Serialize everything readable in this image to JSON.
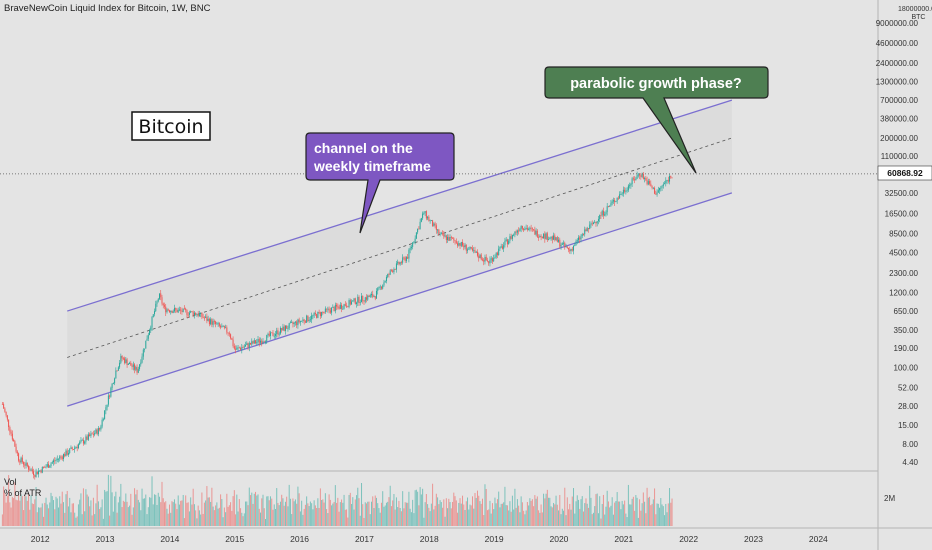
{
  "header": {
    "title": "BraveNewCoin Liquid Index for Bitcoin, 1W, BNC"
  },
  "axis": {
    "currency_label": "BTC",
    "scale_top": "18000000.00",
    "y_ticks": [
      "9000000.00",
      "4600000.00",
      "2400000.00",
      "1300000.00",
      "700000.00",
      "380000.00",
      "200000.00",
      "110000.00",
      "60868.92",
      "32500.00",
      "16500.00",
      "8500.00",
      "4500.00",
      "2300.00",
      "1200.00",
      "650.00",
      "350.00",
      "190.00",
      "100.00",
      "52.00",
      "28.00",
      "15.00",
      "8.00",
      "4.40"
    ],
    "x_ticks": [
      "2012",
      "2013",
      "2014",
      "2015",
      "2016",
      "2017",
      "2018",
      "2019",
      "2020",
      "2021",
      "2022",
      "2023",
      "2024"
    ],
    "last_price": "60868.92"
  },
  "volume_pane": {
    "title": "Vol",
    "subtitle": "% of ATR",
    "scale_label": "2M"
  },
  "annotations": {
    "asset_label": "Bitcoin",
    "channel_note": "channel on the weekly timeframe",
    "channel_note_line1": "channel on the",
    "channel_note_line2": "weekly timeframe",
    "parabolic_note": "parabolic growth phase?"
  },
  "colors": {
    "background": "#e4e4e4",
    "channel_line": "#7b6fd0",
    "channel_fill": "#d9d9d9",
    "up_candle": "#26a69a",
    "down_candle": "#ef5350",
    "channel_callout": "#7e57c2",
    "parabolic_callout": "#4e7f52",
    "price_line": "#333333"
  },
  "chart_data": {
    "type": "candlestick",
    "scale": "log",
    "series": [
      {
        "name": "BTC",
        "x": [
          "2011-06",
          "2011-09",
          "2011-12",
          "2012-06",
          "2012-12",
          "2013-03",
          "2013-04",
          "2013-07",
          "2013-11",
          "2013-12",
          "2014-06",
          "2014-12",
          "2015-01",
          "2015-06",
          "2015-12",
          "2016-06",
          "2016-12",
          "2017-03",
          "2017-06",
          "2017-09",
          "2017-12",
          "2018-03",
          "2018-06",
          "2018-12",
          "2019-06",
          "2019-09",
          "2019-12",
          "2020-03",
          "2020-06",
          "2020-12",
          "2021-04",
          "2021-07",
          "2021-10"
        ],
        "values": [
          30,
          5,
          3,
          6,
          13,
          90,
          140,
          90,
          1100,
          700,
          600,
          320,
          180,
          250,
          430,
          650,
          950,
          1100,
          2500,
          4000,
          17000,
          8000,
          6500,
          3300,
          11000,
          8500,
          7200,
          4800,
          9300,
          29000,
          63000,
          32000,
          61000
        ]
      }
    ],
    "channel": {
      "upper": [
        {
          "x": "2012-06",
          "y": 650
        },
        {
          "x": "2022-09",
          "y": 700000
        }
      ],
      "middle": [
        {
          "x": "2012-06",
          "y": 140
        },
        {
          "x": "2022-09",
          "y": 200000
        }
      ],
      "lower": [
        {
          "x": "2012-06",
          "y": 28
        },
        {
          "x": "2022-09",
          "y": 32500
        }
      ]
    },
    "last_price": 60868.92,
    "ylim": [
      4.4,
      18000000
    ],
    "xlim": [
      "2011-05",
      "2024-12"
    ],
    "grid": false
  }
}
